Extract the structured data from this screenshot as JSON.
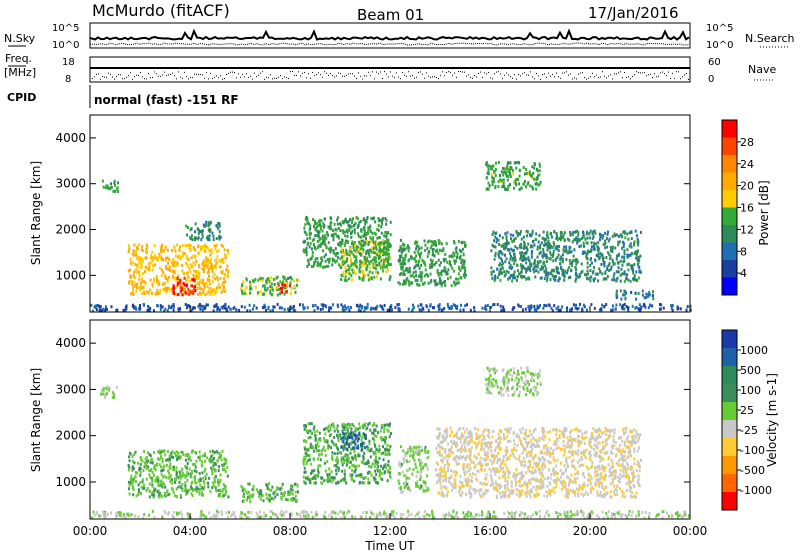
{
  "header": {
    "station": "McMurdo (fitACF)",
    "beam": "Beam 01",
    "date": "17/Jan/2016"
  },
  "noise_panel": {
    "left_label": "N.Sky",
    "right_label": "N.Search",
    "left_ticks": [
      "10^5",
      "10^0"
    ],
    "right_ticks": [
      "10^5",
      "10^0"
    ]
  },
  "freq_panel": {
    "left_label_1": "Freq.",
    "left_label_2": "[MHz]",
    "right_label": "Nave",
    "left_ticks": [
      "18",
      "8"
    ],
    "right_ticks": [
      "60",
      "0"
    ]
  },
  "cpid_panel": {
    "label": "CPID",
    "text": "normal (fast) -151 RF"
  },
  "power_panel": {
    "ylabel": "Slant Range [km]",
    "cbar_label": "Power [dB]",
    "cbar_ticks": [
      "28",
      "24",
      "20",
      "16",
      "12",
      "8",
      "4"
    ],
    "cbar_colors": [
      "#ff0000",
      "#ff4400",
      "#ff8800",
      "#ffaa00",
      "#ffcc00",
      "#33aa33",
      "#2e8b57",
      "#1f6fb2",
      "#1a3fa0",
      "#0000ff"
    ]
  },
  "velocity_panel": {
    "ylabel": "Slant Range [km]",
    "cbar_label": "Velocity [m s-1]",
    "cbar_ticks": [
      "1000",
      "500",
      "100",
      "25",
      "-25",
      "-100",
      "-500",
      "-1000"
    ],
    "cbar_colors": [
      "#1a3aa8",
      "#2060a8",
      "#2e8b57",
      "#3a8f5a",
      "#66cc33",
      "#c8c8c8",
      "#ffcc33",
      "#ff9900",
      "#ff6600",
      "#ff0000"
    ]
  },
  "xaxis": {
    "label": "Time UT",
    "ticks": [
      "00:00",
      "04:00",
      "08:00",
      "12:00",
      "16:00",
      "20:00",
      "00:00"
    ]
  },
  "chart_data": [
    {
      "type": "heatmap",
      "title": "Power",
      "x": "Time UT (hours)",
      "xlim": [
        0,
        24
      ],
      "ylim": [
        200,
        4500
      ],
      "y_ticks": [
        1000,
        2000,
        3000,
        4000
      ],
      "cbar_range": [
        0,
        30
      ],
      "echo_regions": [
        {
          "t": [
            0.4,
            1.1
          ],
          "r": [
            2850,
            3100
          ],
          "val": 12
        },
        {
          "t": [
            1.5,
            5.5
          ],
          "r": [
            600,
            1700
          ],
          "val": 18
        },
        {
          "t": [
            3.2,
            4.2
          ],
          "r": [
            600,
            1000
          ],
          "val": 28
        },
        {
          "t": [
            3.8,
            5.2
          ],
          "r": [
            1800,
            2200
          ],
          "val": 10
        },
        {
          "t": [
            6.0,
            8.3
          ],
          "r": [
            600,
            1000
          ],
          "val": 14
        },
        {
          "t": [
            7.5,
            8.0
          ],
          "r": [
            650,
            850
          ],
          "val": 26
        },
        {
          "t": [
            8.5,
            12.0
          ],
          "r": [
            1200,
            2300
          ],
          "val": 12
        },
        {
          "t": [
            10.0,
            12.0
          ],
          "r": [
            900,
            1800
          ],
          "val": 14
        },
        {
          "t": [
            12.3,
            15.0
          ],
          "r": [
            800,
            1800
          ],
          "val": 12
        },
        {
          "t": [
            16.0,
            22.0
          ],
          "r": [
            900,
            2000
          ],
          "val": 10
        },
        {
          "t": [
            15.8,
            18.0
          ],
          "r": [
            2900,
            3500
          ],
          "val": 13
        },
        {
          "t": [
            21.0,
            22.5
          ],
          "r": [
            500,
            700
          ],
          "val": 8
        },
        {
          "t": [
            0.0,
            24.0
          ],
          "r": [
            250,
            400
          ],
          "val": 6
        }
      ]
    },
    {
      "type": "heatmap",
      "title": "Velocity",
      "x": "Time UT (hours)",
      "xlim": [
        0,
        24
      ],
      "ylim": [
        200,
        4500
      ],
      "y_ticks": [
        1000,
        2000,
        3000,
        4000
      ],
      "cbar_range": [
        -1000,
        1000
      ],
      "echo_regions": [
        {
          "t": [
            0.4,
            1.1
          ],
          "r": [
            2850,
            3100
          ],
          "val": 0
        },
        {
          "t": [
            1.5,
            5.5
          ],
          "r": [
            700,
            1700
          ],
          "val": 150
        },
        {
          "t": [
            6.0,
            8.3
          ],
          "r": [
            600,
            1000
          ],
          "val": 150
        },
        {
          "t": [
            8.5,
            12.0
          ],
          "r": [
            1000,
            2300
          ],
          "val": 200
        },
        {
          "t": [
            10.0,
            11.0
          ],
          "r": [
            1700,
            2100
          ],
          "val": 700
        },
        {
          "t": [
            12.3,
            13.5
          ],
          "r": [
            800,
            1800
          ],
          "val": 60
        },
        {
          "t": [
            13.8,
            22.0
          ],
          "r": [
            700,
            2200
          ],
          "val": -150
        },
        {
          "t": [
            15.8,
            18.0
          ],
          "r": [
            2900,
            3500
          ],
          "val": 0
        },
        {
          "t": [
            0.0,
            24.0
          ],
          "r": [
            250,
            400
          ],
          "val": -20
        }
      ]
    }
  ]
}
